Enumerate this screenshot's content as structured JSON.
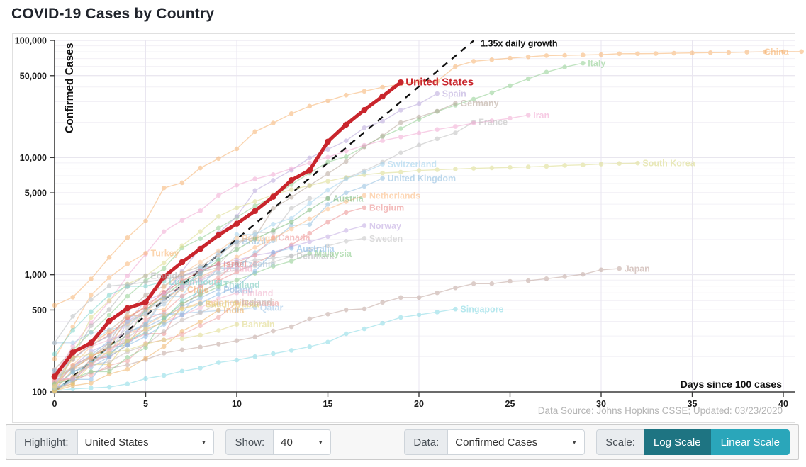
{
  "title": "COVID-19 Cases by Country",
  "source_note": "Data Source: Johns Hopkins CSSE; Updated: 03/23/2020",
  "controls": {
    "highlight_label": "Highlight:",
    "highlight_value": "United States",
    "show_label": "Show:",
    "show_value": "40",
    "data_label": "Data:",
    "data_value": "Confirmed Cases",
    "scale_label": "Scale:",
    "log_button_label": "Log Scale",
    "linear_button_label": "Linear Scale",
    "active_scale": "log",
    "log_button_color": "#1e7482",
    "linear_button_color": "#2aa6ba"
  },
  "chart_data": {
    "type": "line",
    "title": "COVID-19 Cases by Country",
    "xlabel": "Days since 100 cases",
    "ylabel": "Confirmed Cases",
    "scale": "log",
    "xlim": [
      0,
      40
    ],
    "ylim": [
      100,
      100000
    ],
    "x_ticks": [
      0,
      5,
      10,
      15,
      20,
      25,
      30,
      35,
      40
    ],
    "y_ticks": [
      100,
      500,
      1000,
      5000,
      10000,
      50000,
      100000
    ],
    "y_tick_labels": [
      "100",
      "500",
      "1,000",
      "5,000",
      "10,000",
      "50,000",
      "100,000"
    ],
    "grid": true,
    "highlight": "United States",
    "highlight_color": "#c9252c",
    "reference_line": {
      "label": "1.35x daily growth",
      "growth_rate": 1.35,
      "start_value": 100,
      "start_day": 0,
      "end_day": 23,
      "style": "dashed",
      "color": "#111111"
    },
    "series": [
      {
        "name": "China",
        "color": "#f7b26e",
        "values": [
          548,
          643,
          920,
          1406,
          2075,
          2877,
          5509,
          6087,
          8141,
          9802,
          11891,
          16630,
          19716,
          23707,
          27440,
          30587,
          34110,
          36814,
          39829,
          42354,
          44386,
          44759,
          59895,
          66358,
          68413,
          70513,
          72434,
          74211,
          74619,
          75077,
          75550,
          77001,
          77022,
          77241,
          77754,
          78166,
          78600,
          78928,
          79356,
          79932,
          80136,
          80261
        ]
      },
      {
        "name": "Italy",
        "color": "#90ce90",
        "values": [
          155,
          229,
          322,
          453,
          655,
          888,
          1128,
          1694,
          2036,
          2502,
          3089,
          3858,
          4636,
          5883,
          7375,
          9172,
          10149,
          12462,
          15113,
          17660,
          21157,
          24747,
          27980,
          31506,
          35713,
          41035,
          47021,
          53578,
          59138,
          63927
        ]
      },
      {
        "name": "United States",
        "color": "#c9252c",
        "highlight": true,
        "values": [
          135,
          217,
          262,
          402,
          518,
          583,
          959,
          1281,
          1663,
          2179,
          2727,
          3499,
          4632,
          6421,
          7783,
          13677,
          19100,
          25489,
          33276,
          43847
        ]
      },
      {
        "name": "Spain",
        "color": "#b9a7db",
        "values": [
          120,
          165,
          222,
          259,
          400,
          500,
          673,
          1073,
          1695,
          2277,
          3146,
          5232,
          6391,
          7798,
          9942,
          11748,
          13910,
          17963,
          20410,
          25374,
          28768,
          35136
        ]
      },
      {
        "name": "Germany",
        "color": "#b8a79b",
        "values": [
          130,
          159,
          196,
          262,
          482,
          670,
          799,
          1040,
          1176,
          1457,
          1908,
          2078,
          3675,
          4585,
          5795,
          7272,
          9257,
          12327,
          15320,
          19848,
          22213,
          24873,
          29056
        ]
      },
      {
        "name": "France",
        "color": "#bfbfbf",
        "values": [
          100,
          130,
          191,
          204,
          288,
          380,
          656,
          959,
          1136,
          1219,
          1794,
          2293,
          2293,
          3681,
          4496,
          4532,
          6683,
          7715,
          9124,
          10970,
          12758,
          14463,
          16243,
          20123
        ]
      },
      {
        "name": "Iran",
        "color": "#f2a9d3",
        "values": [
          139,
          245,
          388,
          593,
          978,
          1501,
          2336,
          2922,
          3513,
          4747,
          5823,
          6566,
          7161,
          8042,
          9000,
          10075,
          11364,
          12729,
          13938,
          14991,
          16169,
          17361,
          18407,
          19644,
          20610,
          21638,
          23049
        ]
      },
      {
        "name": "South Korea",
        "color": "#dcdc8c",
        "values": [
          104,
          204,
          433,
          602,
          833,
          977,
          1261,
          1766,
          2337,
          3150,
          3736,
          4212,
          4812,
          5328,
          5766,
          6284,
          6767,
          7134,
          7382,
          7513,
          7755,
          7869,
          7979,
          8086,
          8162,
          8236,
          8320,
          8413,
          8565,
          8652,
          8799,
          8897,
          8961
        ]
      },
      {
        "name": "Switzerland",
        "color": "#a3d3ee",
        "values": [
          114,
          214,
          268,
          337,
          374,
          491,
          652,
          652,
          1139,
          1359,
          2200,
          2200,
          2700,
          3028,
          4075,
          5294,
          6575,
          7474,
          8795
        ]
      },
      {
        "name": "United Kingdom",
        "color": "#92bfe0",
        "values": [
          115,
          163,
          206,
          273,
          321,
          382,
          456,
          456,
          798,
          1140,
          1140,
          1543,
          1950,
          2626,
          2689,
          3983,
          5018,
          5683,
          6650
        ]
      },
      {
        "name": "Netherlands",
        "color": "#fcbd86",
        "values": [
          128,
          188,
          265,
          321,
          382,
          503,
          503,
          804,
          959,
          1135,
          1413,
          1705,
          2051,
          2460,
          2994,
          3631,
          4204,
          4749
        ]
      },
      {
        "name": "Austria",
        "color": "#77b877",
        "values": [
          104,
          131,
          182,
          246,
          302,
          504,
          655,
          860,
          1018,
          1332,
          1646,
          2013,
          2388,
          2814,
          3582,
          4474
        ]
      },
      {
        "name": "Belgium",
        "color": "#ec8f8f",
        "values": [
          109,
          169,
          200,
          239,
          267,
          314,
          314,
          559,
          689,
          886,
          1058,
          1243,
          1486,
          1795,
          2257,
          2815,
          3401,
          3743
        ]
      },
      {
        "name": "Norway",
        "color": "#c2abe2",
        "values": [
          108,
          147,
          176,
          205,
          400,
          598,
          702,
          996,
          1090,
          1221,
          1333,
          1463,
          1550,
          1746,
          1914,
          2118,
          2385,
          2621
        ]
      },
      {
        "name": "Sweden",
        "color": "#c4c4c4",
        "values": [
          137,
          161,
          203,
          248,
          355,
          500,
          599,
          814,
          961,
          1022,
          1103,
          1190,
          1279,
          1439,
          1639,
          1763,
          1934,
          2046
        ]
      },
      {
        "name": "Canada",
        "color": "#f09b9b",
        "values": [
          108,
          117,
          193,
          198,
          252,
          415,
          478,
          657,
          800,
          943,
          1277,
          1469,
          2088
        ]
      },
      {
        "name": "Japan",
        "color": "#c0a59d",
        "values": [
          105,
          122,
          147,
          159,
          170,
          189,
          214,
          228,
          241,
          256,
          274,
          293,
          331,
          360,
          420,
          461,
          502,
          511,
          581,
          639,
          639,
          701,
          773,
          839,
          839,
          878,
          889,
          924,
          963,
          1007,
          1101,
          1128
        ]
      },
      {
        "name": "Singapore",
        "color": "#87d9e4",
        "values": [
          102,
          106,
          108,
          110,
          117,
          130,
          138,
          150,
          160,
          178,
          187,
          200,
          212,
          226,
          243,
          266,
          313,
          345,
          385,
          432,
          455,
          480,
          509
        ]
      },
      {
        "name": "Qatar",
        "color": "#a3c8e8",
        "values": [
          262,
          262,
          320,
          337,
          442,
          452,
          460,
          470,
          481,
          494,
          501,
          526
        ]
      },
      {
        "name": "Turkey",
        "color": "#fab878",
        "values": [
          191,
          359,
          670,
          947,
          1236,
          1529
        ]
      },
      {
        "name": "Ecuador",
        "color": "#b3b3b3",
        "values": [
          111,
          199,
          367,
          506,
          789,
          981
        ]
      },
      {
        "name": "Luxembourg",
        "color": "#77d2c9",
        "values": [
          210,
          335,
          484,
          670,
          798,
          798,
          875
        ]
      },
      {
        "name": "Chile",
        "color": "#f3aa6a",
        "values": [
          103,
          155,
          201,
          238,
          434,
          537,
          632,
          746
        ]
      },
      {
        "name": "Thailand",
        "color": "#7bcabe",
        "values": [
          114,
          147,
          177,
          212,
          272,
          322,
          411,
          599,
          721,
          827
        ]
      },
      {
        "name": "Poland",
        "color": "#8db4dd",
        "values": [
          104,
          125,
          177,
          238,
          251,
          355,
          425,
          536,
          634,
          749
        ]
      },
      {
        "name": "Finland",
        "color": "#f3b8cf",
        "values": [
          155,
          225,
          244,
          277,
          321,
          336,
          400,
          450,
          523,
          626,
          700
        ]
      },
      {
        "name": "India",
        "color": "#f0b266",
        "values": [
          102,
          113,
          119,
          142,
          156,
          194,
          244,
          330,
          396,
          499
        ]
      },
      {
        "name": "Indonesia",
        "color": "#f6c18c",
        "values": [
          117,
          134,
          172,
          227,
          311,
          369,
          450,
          514,
          579
        ]
      },
      {
        "name": "Romania",
        "color": "#ee9f9f",
        "values": [
          123,
          131,
          139,
          168,
          184,
          260,
          277,
          308,
          367,
          433,
          576
        ]
      },
      {
        "name": "Saudi Arabia",
        "color": "#e3cf6f",
        "values": [
          103,
          118,
          171,
          171,
          274,
          344,
          392,
          511,
          562
        ]
      },
      {
        "name": "Iceland",
        "color": "#c4b8b4",
        "values": [
          134,
          156,
          171,
          180,
          220,
          250,
          330,
          409,
          473,
          568,
          588
        ]
      },
      {
        "name": "Israel",
        "color": "#e26f6f",
        "values": [
          143,
          193,
          250,
          304,
          427,
          529,
          712,
          883,
          1071,
          1238
        ]
      },
      {
        "name": "Denmark",
        "color": "#b9bcbe",
        "values": [
          262,
          442,
          615,
          801,
          827,
          864,
          914,
          977,
          1057,
          1151,
          1255,
          1326,
          1395,
          1450
        ]
      },
      {
        "name": "Malaysia",
        "color": "#8bcc8b",
        "values": [
          117,
          129,
          149,
          149,
          197,
          238,
          428,
          566,
          673,
          790,
          900,
          1030,
          1183,
          1306,
          1518
        ]
      },
      {
        "name": "Australia",
        "color": "#86b9e6",
        "values": [
          107,
          128,
          128,
          200,
          250,
          297,
          377,
          452,
          568,
          681,
          791,
          1071,
          1549,
          1682
        ]
      },
      {
        "name": "Brazil",
        "color": "#8fb9dc",
        "values": [
          151,
          151,
          162,
          200,
          321,
          372,
          621,
          793,
          1021,
          1546,
          1924
        ]
      },
      {
        "name": "Portugal",
        "color": "#fac392",
        "values": [
          112,
          169,
          245,
          331,
          448,
          448,
          785,
          1020,
          1280,
          1600,
          2060
        ]
      },
      {
        "name": "Czechia",
        "color": "#aac4da",
        "values": [
          141,
          189,
          253,
          298,
          396,
          464,
          560,
          765,
          889,
          1047,
          1236
        ]
      },
      {
        "name": "Ireland",
        "color": "#f2abc6",
        "values": [
          129,
          129,
          169,
          223,
          292,
          557,
          683,
          785,
          906,
          1125
        ]
      },
      {
        "name": "Bahrain",
        "color": "#e0da8a",
        "values": [
          109,
          195,
          210,
          214,
          228,
          256,
          278,
          285,
          305,
          334,
          377
        ]
      }
    ]
  }
}
